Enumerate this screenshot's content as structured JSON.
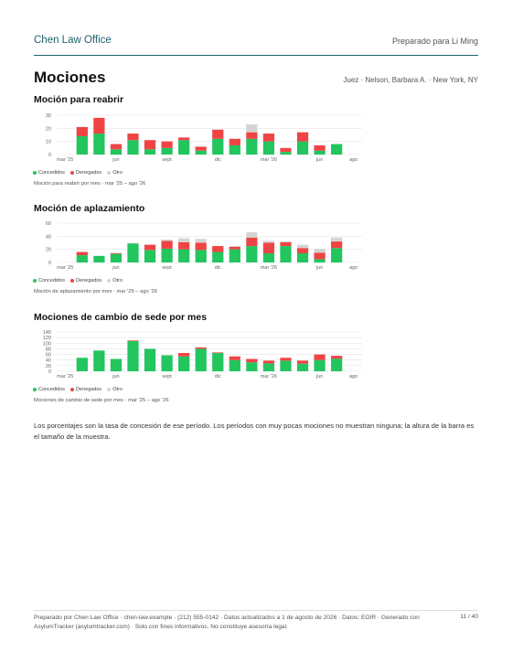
{
  "header": {
    "firm": "Chen Law Office",
    "prepared_for": "Preparado para Li Ming"
  },
  "title": "Mociones",
  "subtitle": "Juez · Nelson, Barbara A. · New York, NY",
  "chart_data": [
    {
      "type": "bar",
      "stacked": true,
      "title": "Moción para reabrir",
      "caption": "Moción para reabrir por mes · mar '25 – ago '26",
      "categories": [
        "mar '25",
        null,
        null,
        "jun",
        null,
        null,
        "sept",
        null,
        null,
        "dic",
        null,
        null,
        "mar '26",
        null,
        null,
        "jun",
        null,
        "ago"
      ],
      "series": [
        {
          "name": "Concedidos",
          "color": "#22c55e",
          "values": [
            null,
            14,
            16,
            4,
            11,
            4,
            5,
            11,
            3,
            12,
            7,
            12,
            10,
            2,
            10,
            3,
            8,
            null
          ]
        },
        {
          "name": "Denegados",
          "color": "#ef4444",
          "values": [
            null,
            7,
            12,
            4,
            5,
            7,
            5,
            2,
            3,
            7,
            5,
            5,
            6,
            3,
            7,
            4,
            0,
            null
          ]
        },
        {
          "name": "Otro",
          "color": "#d4d4d4",
          "values": [
            null,
            0,
            0,
            0,
            0,
            0,
            0,
            0,
            0,
            0,
            0,
            6,
            0,
            0,
            0,
            0,
            0,
            null
          ]
        }
      ],
      "ylim": [
        0,
        30
      ],
      "yticks": [
        0,
        10,
        20,
        30
      ],
      "grid": true
    },
    {
      "type": "bar",
      "stacked": true,
      "title": "Moción de aplazamiento",
      "caption": "Moción de aplazamiento por mes · mar '25 – ago '26",
      "categories": [
        "mar '25",
        null,
        null,
        "jun",
        null,
        null,
        "sept",
        null,
        null,
        "dic",
        null,
        null,
        "mar '26",
        null,
        null,
        "jun",
        null,
        "ago"
      ],
      "series": [
        {
          "name": "Concedidos",
          "color": "#22c55e",
          "values": [
            null,
            11,
            10,
            13,
            29,
            19,
            21,
            20,
            19,
            16,
            20,
            25,
            14,
            25,
            14,
            5,
            22,
            null
          ]
        },
        {
          "name": "Denegados",
          "color": "#ef4444",
          "values": [
            null,
            5,
            0,
            1,
            0,
            8,
            12,
            11,
            11,
            9,
            4,
            13,
            16,
            6,
            8,
            10,
            10,
            null
          ]
        },
        {
          "name": "Otro",
          "color": "#d4d4d4",
          "values": [
            null,
            0,
            0,
            1,
            1,
            0,
            2,
            6,
            6,
            0,
            1,
            8,
            3,
            1,
            5,
            6,
            6,
            null
          ]
        }
      ],
      "ylim": [
        0,
        60
      ],
      "yticks": [
        0,
        20,
        40,
        60
      ],
      "grid": true
    },
    {
      "type": "bar",
      "stacked": true,
      "title": "Mociones de cambio de sede por mes",
      "caption": "Mociones de cambio de sede por mes · mar '25 – ago '26",
      "categories": [
        "mar '25",
        null,
        null,
        "jun",
        null,
        null,
        "sept",
        null,
        null,
        "dic",
        null,
        null,
        "mar '26",
        null,
        null,
        "jun",
        null,
        "ago"
      ],
      "series": [
        {
          "name": "Concedidos",
          "color": "#22c55e",
          "values": [
            null,
            48,
            74,
            44,
            108,
            80,
            57,
            53,
            80,
            65,
            40,
            32,
            28,
            38,
            27,
            40,
            45,
            null
          ]
        },
        {
          "name": "Denegados",
          "color": "#ef4444",
          "values": [
            null,
            0,
            0,
            0,
            2,
            0,
            0,
            12,
            5,
            2,
            13,
            12,
            10,
            10,
            11,
            20,
            10,
            null
          ]
        },
        {
          "name": "Otro",
          "color": "#d4d4d4",
          "values": [
            null,
            0,
            0,
            0,
            0,
            0,
            0,
            0,
            0,
            0,
            0,
            0,
            0,
            0,
            0,
            0,
            0,
            null
          ]
        }
      ],
      "ylim": [
        0,
        140
      ],
      "yticks": [
        0,
        20,
        40,
        60,
        80,
        100,
        120,
        140
      ],
      "grid": true
    }
  ],
  "note": "Los porcentajes son la tasa de concesión de ese período. Los períodos con muy pocas mociones no muestran ninguna; la altura de la barra es el tamaño de la muestra.",
  "footer": {
    "text": "Preparado por Chen Law Office · chen-law.example · (212) 555-0142 · Datos actualizados a 1 de agosto de 2026 · Datos: EOIR · Generado con AsylumTracker (asylumtracker.com) · Solo con fines informativos. No constituye asesoría legal.",
    "page": "11 / 40"
  }
}
